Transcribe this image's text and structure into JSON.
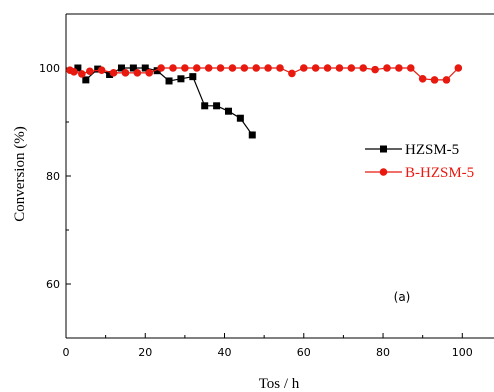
{
  "chart_data": {
    "type": "line",
    "xlabel": "Tos / h",
    "ylabel": "Conversion (%)",
    "xlim": [
      0,
      108
    ],
    "ylim": [
      50,
      110
    ],
    "xticks": [
      0,
      20,
      40,
      60,
      80,
      100
    ],
    "yticks": [
      60,
      80,
      100
    ],
    "annotation": "(a)",
    "legend_position": "right-middle",
    "series": [
      {
        "name": "HZSM-5",
        "color": "#000000",
        "marker": "square",
        "x": [
          3,
          5,
          8,
          11,
          14,
          17,
          20,
          23,
          26,
          29,
          32,
          35,
          38,
          41,
          44,
          47
        ],
        "y": [
          100,
          97.8,
          99.8,
          98.8,
          100,
          100,
          100,
          99.5,
          97.6,
          98,
          98.4,
          93,
          93,
          92,
          90.7,
          87.6
        ]
      },
      {
        "name": "B-HZSM-5",
        "color": "#e8190f",
        "marker": "circle",
        "x": [
          1,
          2,
          4,
          6,
          9,
          12,
          15,
          18,
          21,
          24,
          27,
          30,
          33,
          36,
          39,
          42,
          45,
          48,
          51,
          54,
          57,
          60,
          63,
          66,
          69,
          72,
          75,
          78,
          81,
          84,
          87,
          90,
          93,
          96,
          99
        ],
        "y": [
          99.6,
          99.3,
          98.9,
          99.4,
          99.6,
          99.1,
          99.1,
          99.1,
          99.1,
          100,
          100,
          100,
          100,
          100,
          100,
          100,
          100,
          100,
          100,
          100,
          99,
          100,
          100,
          100,
          100,
          100,
          100,
          99.7,
          100,
          100,
          100,
          98,
          97.8,
          97.8,
          100
        ]
      }
    ]
  }
}
